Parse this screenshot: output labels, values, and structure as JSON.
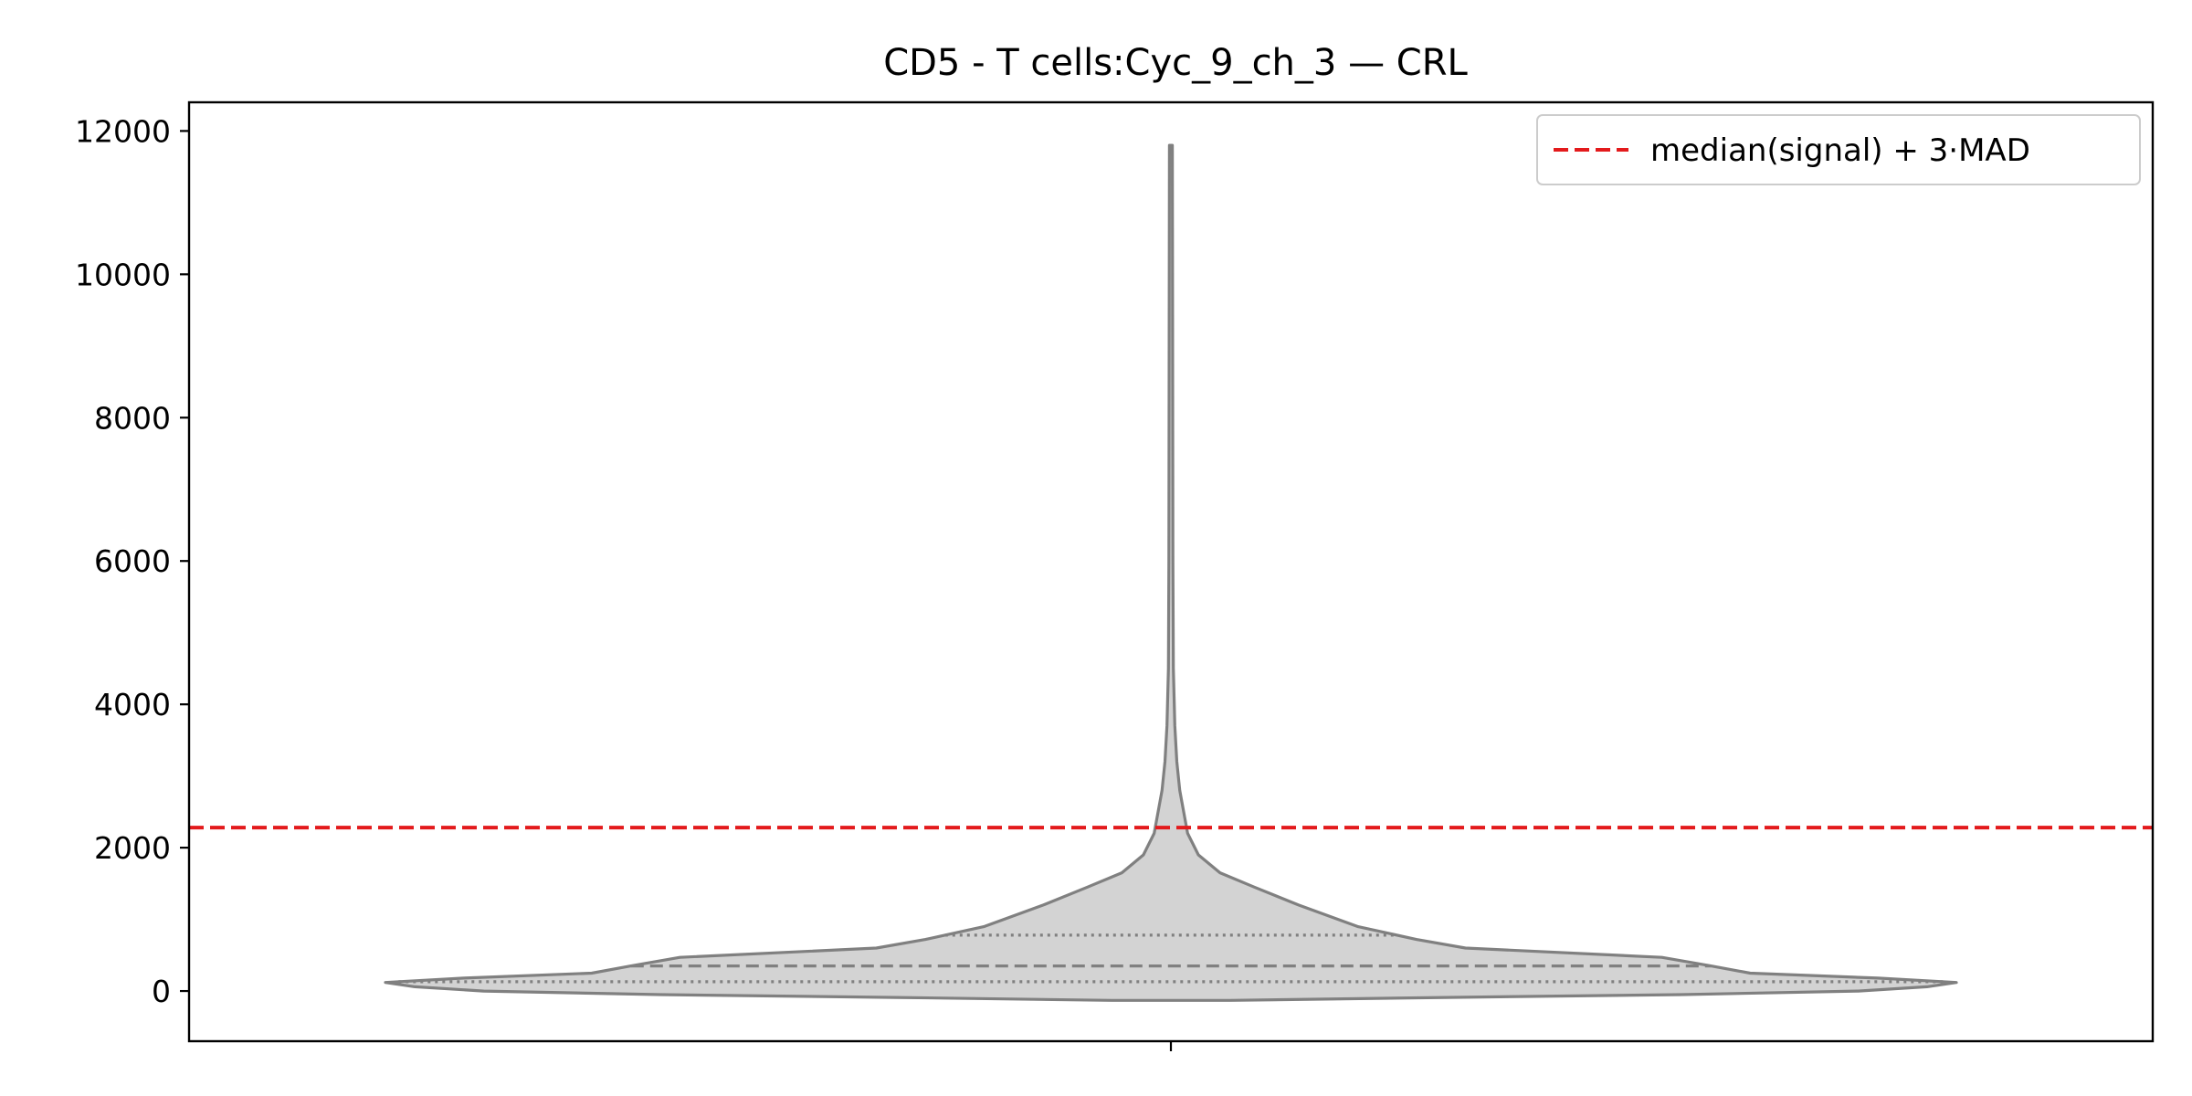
{
  "chart_data": {
    "type": "violin",
    "title": "CD5 - T cells:Cyc_9_ch_3 — CRL",
    "xlabel": "",
    "ylabel": "",
    "ylim": [
      -700,
      12400
    ],
    "yticks": [
      0,
      2000,
      4000,
      6000,
      8000,
      10000,
      12000
    ],
    "ytick_labels": [
      "0",
      "2000",
      "4000",
      "6000",
      "8000",
      "10000",
      "12000"
    ],
    "categories": [
      ""
    ],
    "violin": {
      "fill_color": "#d3d3d3",
      "edge_color": "#808080",
      "min": -130,
      "max": 11800,
      "quartiles": {
        "q1": 130,
        "median": 350,
        "q3": 780
      },
      "profile": [
        {
          "y": -130,
          "half_width": 0.06
        },
        {
          "y": -90,
          "half_width": 0.28
        },
        {
          "y": -50,
          "half_width": 0.52
        },
        {
          "y": 0,
          "half_width": 0.7
        },
        {
          "y": 60,
          "half_width": 0.77
        },
        {
          "y": 120,
          "half_width": 0.8
        },
        {
          "y": 180,
          "half_width": 0.72
        },
        {
          "y": 250,
          "half_width": 0.59
        },
        {
          "y": 350,
          "half_width": 0.55
        },
        {
          "y": 470,
          "half_width": 0.5
        },
        {
          "y": 600,
          "half_width": 0.3
        },
        {
          "y": 720,
          "half_width": 0.25
        },
        {
          "y": 900,
          "half_width": 0.19
        },
        {
          "y": 1200,
          "half_width": 0.13
        },
        {
          "y": 1450,
          "half_width": 0.085
        },
        {
          "y": 1650,
          "half_width": 0.05
        },
        {
          "y": 1900,
          "half_width": 0.028
        },
        {
          "y": 2200,
          "half_width": 0.017
        },
        {
          "y": 2800,
          "half_width": 0.009
        },
        {
          "y": 3200,
          "half_width": 0.006
        },
        {
          "y": 3700,
          "half_width": 0.004
        },
        {
          "y": 4500,
          "half_width": 0.0025
        },
        {
          "y": 6000,
          "half_width": 0.002
        },
        {
          "y": 9000,
          "half_width": 0.0018
        },
        {
          "y": 11800,
          "half_width": 0.0015
        }
      ]
    },
    "reference_line": {
      "label": "median(signal) + 3·MAD",
      "y": 2280,
      "color": "#e31a1c",
      "style": "dashed"
    },
    "legend_placement": "top-right",
    "grid": false
  }
}
